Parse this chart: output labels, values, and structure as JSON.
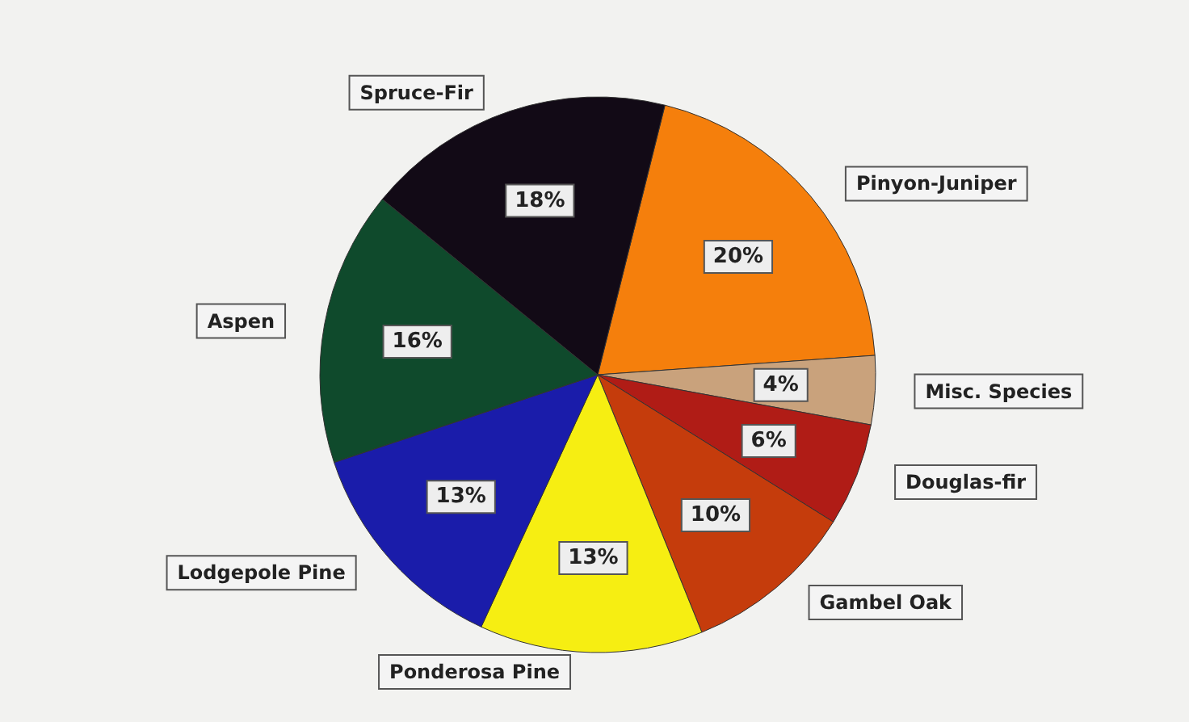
{
  "chart_data": {
    "type": "pie",
    "categories": [
      "Pinyon-Juniper",
      "Misc. Species",
      "Douglas-fir",
      "Gambel Oak",
      "Ponderosa Pine",
      "Lodgepole Pine",
      "Aspen",
      "Spruce-Fir"
    ],
    "values": [
      20,
      4,
      6,
      10,
      13,
      13,
      16,
      18
    ],
    "value_labels": [
      "20%",
      "4%",
      "6%",
      "10%",
      "13%",
      "13%",
      "16%",
      "18%"
    ],
    "colors": [
      "#f57f0c",
      "#c9a27c",
      "#b01c16",
      "#c53c0c",
      "#f6ee12",
      "#1a1caa",
      "#0f4a2c",
      "#120a16"
    ],
    "legend": false
  }
}
